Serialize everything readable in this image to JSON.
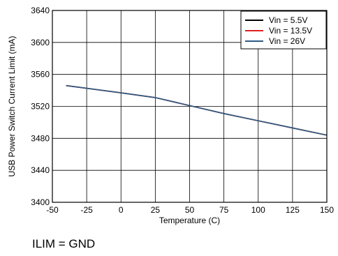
{
  "caption": "ILIM = GND",
  "chart_data": {
    "type": "line",
    "title": "",
    "xlabel": "Temperature (C)",
    "ylabel": "USB Power Switch Current Limit (mA)",
    "xlim": [
      -50,
      150
    ],
    "ylim": [
      3400,
      3640
    ],
    "xticks": [
      -50,
      -25,
      0,
      25,
      50,
      75,
      100,
      125,
      150
    ],
    "yticks": [
      3400,
      3440,
      3480,
      3520,
      3560,
      3600,
      3640
    ],
    "grid": true,
    "legend_position": "top-right",
    "series": [
      {
        "name": "Vin = 5.5V",
        "color": "#000000",
        "x": [
          -40,
          0,
          25,
          50,
          75,
          100,
          125,
          150
        ],
        "y": [
          3546,
          3537,
          3531,
          3521,
          3511,
          3502,
          3493,
          3484
        ]
      },
      {
        "name": "Vin = 13.5V",
        "color": "#e02020",
        "x": [
          -40,
          0,
          25,
          50,
          75,
          100,
          125,
          150
        ],
        "y": [
          3546,
          3537,
          3531,
          3521,
          3511,
          3502,
          3493,
          3484
        ]
      },
      {
        "name": "Vin = 26V",
        "color": "#2b5b84",
        "x": [
          -40,
          0,
          25,
          50,
          75,
          100,
          125,
          150
        ],
        "y": [
          3546,
          3537,
          3531,
          3521,
          3511,
          3502,
          3493,
          3484
        ]
      }
    ]
  }
}
